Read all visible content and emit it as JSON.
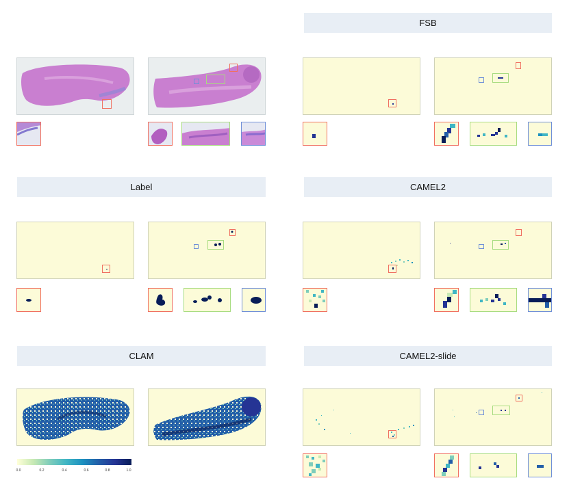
{
  "headers": {
    "fsb": "FSB",
    "label": "Label",
    "camel2": "CAMEL2",
    "clam": "CLAM",
    "camel2_slide": "CAMEL2-slide"
  },
  "colorbar": {
    "ticks": [
      "0.0",
      "0.2",
      "0.4",
      "0.6",
      "0.8",
      "1.0"
    ],
    "colormap": [
      "#ffffd9",
      "#c7e9b4",
      "#7fcdbb",
      "#41b6c4",
      "#1d91c0",
      "#225ea8",
      "#253494",
      "#081d58"
    ]
  },
  "colors": {
    "background_panel": "#fcfbd8",
    "header_bg": "#e8eef5",
    "box_red": "#f07060",
    "box_green": "#a8dc80",
    "box_blue": "#6f8fd8",
    "tissue_pink": "#c97fd0"
  }
}
